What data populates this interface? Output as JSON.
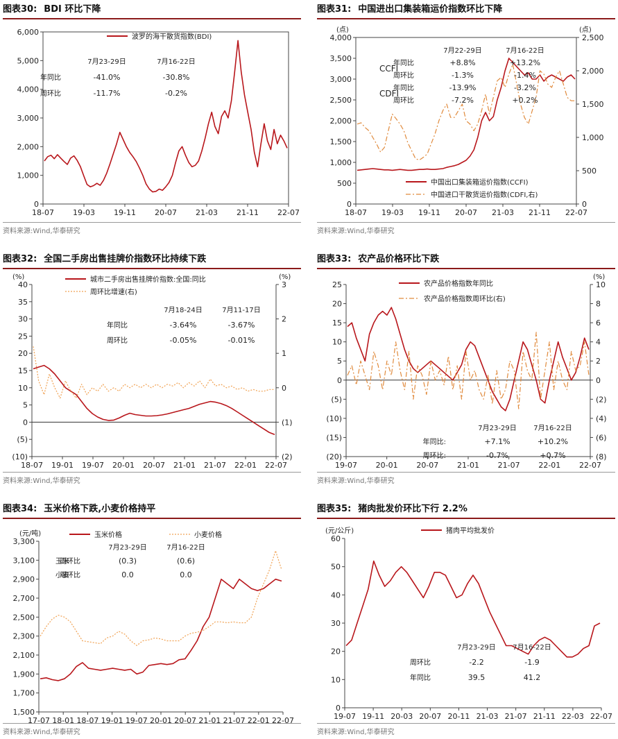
{
  "panels": [
    {
      "id": "p30",
      "num": "图表30:",
      "title": "BDI 环比下降",
      "source": "资料来源:Wind,华泰研究",
      "chart_data": {
        "type": "line",
        "yleft": {
          "min": 0,
          "max": 6000,
          "ticks": [
            "0",
            "1,000",
            "2,000",
            "3,000",
            "4,000",
            "5,000",
            "6,000"
          ],
          "unit": ""
        },
        "xticks": [
          "18-07",
          "19-03",
          "19-11",
          "20-07",
          "21-03",
          "21-11",
          "22-07"
        ],
        "series": [
          {
            "name": "波罗的海干散货指数(BDI)",
            "color": "#b8161b",
            "dash": "",
            "axis": "left",
            "values": [
              1500,
              1650,
              1700,
              1580,
              1720,
              1600,
              1480,
              1380,
              1600,
              1680,
              1520,
              1300,
              980,
              680,
              600,
              640,
              720,
              650,
              820,
              1080,
              1400,
              1750,
              2100,
              2500,
              2250,
              2000,
              1800,
              1650,
              1480,
              1250,
              1000,
              700,
              520,
              420,
              440,
              520,
              480,
              600,
              750,
              1000,
              1450,
              1850,
              2000,
              1700,
              1450,
              1300,
              1350,
              1500,
              1850,
              2300,
              2800,
              3200,
              2700,
              2450,
              3050,
              3250,
              3000,
              3600,
              4600,
              5700,
              4600,
              3800,
              3200,
              2600,
              1800,
              1300,
              2100,
              2800,
              2200,
              1900,
              2600,
              2100,
              2400,
              2200,
              1950
            ]
          }
        ],
        "table": {
          "cols": [
            "7月23-29日",
            "7月16-22日"
          ],
          "rows": [
            {
              "label": "年同比",
              "values": [
                "-41.0%",
                "-30.8%"
              ]
            },
            {
              "label": "周环比",
              "values": [
                "-11.7%",
                "-0.2%"
              ]
            }
          ]
        }
      }
    },
    {
      "id": "p31",
      "num": "图表31:",
      "title": "中国进出口集装箱运价指数环比下降",
      "source": "资料来源:Wind,华泰研究",
      "chart_data": {
        "type": "line",
        "yleft": {
          "min": 0,
          "max": 4000,
          "ticks": [
            "0",
            "500",
            "1,000",
            "1,500",
            "2,000",
            "2,500",
            "3,000",
            "3,500",
            "4,000"
          ],
          "unit": "(点)"
        },
        "yright": {
          "min": 0,
          "max": 2500,
          "ticks": [
            "0",
            "500",
            "1,000",
            "1,500",
            "2,000",
            "2,500"
          ],
          "unit": "(点)"
        },
        "xticks": [
          "18-07",
          "19-03",
          "19-11",
          "20-07",
          "21-03",
          "21-11",
          "22-07"
        ],
        "series": [
          {
            "name": "中国出口集装箱运价指数(CCFI)",
            "color": "#b8161b",
            "dash": "",
            "axis": "left",
            "values": [
              810,
              820,
              830,
              840,
              850,
              840,
              830,
              820,
              820,
              810,
              820,
              830,
              820,
              810,
              810,
              820,
              830,
              830,
              840,
              830,
              830,
              840,
              850,
              880,
              900,
              920,
              950,
              1000,
              1050,
              1150,
              1300,
              1600,
              2000,
              2200,
              2000,
              2100,
              2500,
              2800,
              3200,
              3500,
              3400,
              3300,
              3200,
              3100,
              3150,
              3000,
              3000,
              3100,
              2950,
              3050,
              3100,
              3050,
              3000,
              2950,
              3050,
              3100,
              3000
            ]
          },
          {
            "name": "中国进口干散货运价指数(CDFI,右)",
            "color": "#e08a3c",
            "dash": "7 3 2 3",
            "axis": "right",
            "values": [
              1200,
              1220,
              1150,
              1100,
              1000,
              900,
              780,
              850,
              1100,
              1350,
              1280,
              1200,
              1100,
              920,
              800,
              680,
              660,
              700,
              750,
              900,
              1050,
              1250,
              1400,
              1500,
              1300,
              1300,
              1400,
              1500,
              1250,
              1200,
              1100,
              1200,
              1400,
              1650,
              1350,
              1600,
              1850,
              1900,
              1750,
              1950,
              2100,
              1800,
              1500,
              1300,
              1200,
              1400,
              1600,
              2000,
              1950,
              1800,
              1750,
              1900,
              2000,
              1800,
              1600,
              1550,
              1550
            ]
          }
        ],
        "table": {
          "cols": [
            "7月22-29日",
            "7月16-22日"
          ],
          "rows": [
            {
              "group": "CCFI",
              "label": "年同比",
              "values": [
                "+8.8%",
                "+13.2%"
              ]
            },
            {
              "group": "",
              "label": "周环比",
              "values": [
                "-1.3%",
                "-1.4%"
              ]
            },
            {
              "group": "CDFI",
              "label": "年同比",
              "values": [
                "-13.9%",
                "-3.2%"
              ]
            },
            {
              "group": "",
              "label": "周环比",
              "values": [
                "-7.2%",
                "+0.2%"
              ]
            }
          ]
        }
      }
    },
    {
      "id": "p32",
      "num": "图表32:",
      "title": "全国二手房出售挂牌价指数环比持续下跌",
      "source": "资料来源:Wind,华泰研究",
      "chart_data": {
        "type": "line",
        "yleft": {
          "min": -10,
          "max": 40,
          "ticks": [
            "(10)",
            "(5)",
            "0",
            "5",
            "10",
            "15",
            "20",
            "25",
            "30",
            "35",
            "40"
          ],
          "unit": "(%)"
        },
        "yright": {
          "min": -2,
          "max": 3,
          "ticks": [
            "(2)",
            "(1)",
            "0",
            "1",
            "2",
            "3"
          ],
          "unit": "(%)"
        },
        "xticks": [
          "18-07",
          "19-01",
          "19-07",
          "20-01",
          "20-07",
          "21-01",
          "21-07",
          "22-01",
          "22-07"
        ],
        "series": [
          {
            "name": "城市二手房出售挂牌价指数:全国:同比",
            "color": "#b8161b",
            "dash": "",
            "axis": "left",
            "values": [
              15.5,
              16,
              16.5,
              15.5,
              14,
              12,
              10,
              9,
              8,
              6,
              4,
              2.5,
              1.5,
              0.8,
              0.5,
              0.6,
              1.2,
              2,
              2.6,
              2.2,
              2,
              1.8,
              1.8,
              1.9,
              2.1,
              2.4,
              2.8,
              3.2,
              3.6,
              4,
              4.6,
              5.2,
              5.6,
              6,
              5.8,
              5.4,
              4.8,
              4,
              3,
              2,
              1,
              0,
              -1,
              -2,
              -3,
              -3.6
            ]
          },
          {
            "name": "周环比增速(右)",
            "color": "#f0a050",
            "dash": "2 2",
            "axis": "right",
            "values": [
              1.2,
              0.2,
              -0.2,
              0.4,
              0,
              -0.3,
              0.2,
              -0.1,
              -0.3,
              0.1,
              -0.2,
              0,
              -0.1,
              0.1,
              -0.1,
              0,
              -0.1,
              0.1,
              0,
              0.1,
              0,
              0.1,
              0,
              0.1,
              0,
              0.1,
              0.05,
              0.15,
              0,
              0.15,
              0.05,
              0.2,
              0,
              0.25,
              0.05,
              0.1,
              0,
              0.05,
              -0.05,
              0,
              -0.1,
              -0.05,
              -0.1,
              -0.1,
              -0.05,
              -0.05
            ]
          }
        ],
        "table": {
          "cols": [
            "7月18-24日",
            "7月11-17日"
          ],
          "rows": [
            {
              "label": "年同比",
              "values": [
                "-3.64%",
                "-3.67%"
              ]
            },
            {
              "label": "周环比",
              "values": [
                "-0.05%",
                "-0.01%"
              ]
            }
          ]
        }
      }
    },
    {
      "id": "p33",
      "num": "图表33:",
      "title": "农产品价格环比下跌",
      "source": "资料来源:Wind,华泰研究",
      "chart_data": {
        "type": "line",
        "yleft": {
          "min": -20,
          "max": 25,
          "ticks": [
            "(20)",
            "(15)",
            "(10)",
            "(5)",
            "0",
            "5",
            "10",
            "15",
            "20",
            "25"
          ],
          "unit": ""
        },
        "yright": {
          "min": -8,
          "max": 10,
          "ticks": [
            "(8)",
            "(6)",
            "(4)",
            "(2)",
            "0",
            "2",
            "4",
            "6",
            "8",
            "10"
          ],
          "unit": "(%)"
        },
        "xticks": [
          "19-07",
          "20-01",
          "20-07",
          "21-01",
          "21-07",
          "22-01",
          "22-07"
        ],
        "series": [
          {
            "name": "农产品价格指数年同比",
            "color": "#b8161b",
            "dash": "",
            "axis": "left",
            "values": [
              14,
              15,
              11,
              8,
              5,
              12,
              15,
              17,
              18,
              17,
              19,
              16,
              12,
              8,
              5,
              3,
              2,
              3,
              4,
              5,
              4,
              3,
              2,
              1,
              0,
              2,
              4,
              8,
              10,
              9,
              6,
              3,
              0,
              -3,
              -5,
              -7,
              -8,
              -5,
              0,
              5,
              10,
              8,
              4,
              0,
              -5,
              -6,
              0,
              5,
              10,
              6,
              3,
              0,
              2,
              6,
              11,
              8
            ]
          },
          {
            "name": "农产品价格指数周环比(右)",
            "color": "#e08a3c",
            "dash": "7 3 2 3",
            "axis": "right",
            "values": [
              0.5,
              1.5,
              -0.5,
              2,
              0.5,
              -1,
              3,
              1.5,
              -1,
              2,
              0.5,
              4,
              1,
              -1,
              3,
              -2,
              1.5,
              0.5,
              -1.5,
              2,
              0,
              1,
              -0.5,
              2.5,
              -1,
              1.5,
              -2,
              3,
              0,
              1,
              -1,
              -2,
              0.5,
              -2.5,
              1,
              -2,
              -1,
              2,
              1,
              -3,
              3,
              1,
              0,
              5,
              -2,
              1,
              4,
              -1,
              2,
              0,
              -1,
              3,
              1,
              1.5,
              4,
              0.5
            ]
          }
        ],
        "table": {
          "cols": [
            "7月23-29日",
            "7月16-22日"
          ],
          "rows": [
            {
              "label": "年同比:",
              "values": [
                "+7.1%",
                "+10.2%"
              ]
            },
            {
              "label": "周环比:",
              "values": [
                "-0.7%",
                "+0.7%"
              ]
            }
          ]
        }
      }
    },
    {
      "id": "p34",
      "num": "图表34:",
      "title": "玉米价格下跌,小麦价格持平",
      "source": "资料来源:Wind,华泰研究",
      "chart_data": {
        "type": "line",
        "yleft": {
          "min": 1500,
          "max": 3300,
          "ticks": [
            "1,500",
            "1,700",
            "1,900",
            "2,100",
            "2,300",
            "2,500",
            "2,700",
            "2,900",
            "3,100",
            "3,300"
          ],
          "unit": "(元/吨)"
        },
        "xticks": [
          "17-07",
          "18-01",
          "18-07",
          "19-01",
          "19-07",
          "20-01",
          "20-07",
          "21-01",
          "21-07",
          "22-01",
          "22-07"
        ],
        "series": [
          {
            "name": "玉米价格",
            "color": "#b8161b",
            "dash": "",
            "axis": "left",
            "values": [
              1850,
              1860,
              1840,
              1830,
              1850,
              1900,
              1980,
              2020,
              1960,
              1950,
              1940,
              1950,
              1960,
              1950,
              1940,
              1950,
              1900,
              1920,
              1990,
              2000,
              2010,
              2000,
              2010,
              2050,
              2060,
              2150,
              2250,
              2400,
              2500,
              2700,
              2900,
              2850,
              2800,
              2900,
              2850,
              2800,
              2780,
              2800,
              2850,
              2900,
              2880
            ]
          },
          {
            "name": "小麦价格",
            "color": "#f0a050",
            "dash": "2 2",
            "axis": "left",
            "values": [
              2300,
              2400,
              2480,
              2520,
              2500,
              2450,
              2350,
              2250,
              2240,
              2230,
              2220,
              2280,
              2300,
              2350,
              2320,
              2250,
              2200,
              2250,
              2260,
              2280,
              2270,
              2250,
              2250,
              2250,
              2300,
              2330,
              2340,
              2360,
              2400,
              2450,
              2450,
              2440,
              2450,
              2440,
              2440,
              2500,
              2700,
              2850,
              3000,
              3200,
              3000
            ]
          }
        ],
        "table": {
          "cols": [
            "7月23-29日",
            "7月16-22日"
          ],
          "rows": [
            {
              "group": "玉米",
              "label": "周环比",
              "values": [
                "(0.3)",
                "(0.6)"
              ]
            },
            {
              "group": "小麦",
              "label": "周环比",
              "values": [
                "0.0",
                "0.0"
              ]
            }
          ]
        }
      }
    },
    {
      "id": "p35",
      "num": "图表35:",
      "title": "猪肉批发价环比下行 2.2%",
      "source": "资料来源:Wind,华泰研究",
      "chart_data": {
        "type": "line",
        "yleft": {
          "min": 0,
          "max": 60,
          "ticks": [
            "0",
            "10",
            "20",
            "30",
            "40",
            "50",
            "60"
          ],
          "unit": "(元/公斤)"
        },
        "xticks": [
          "19-07",
          "19-11",
          "20-03",
          "20-07",
          "20-11",
          "21-03",
          "21-07",
          "21-11",
          "22-03",
          "22-07"
        ],
        "series": [
          {
            "name": "猪肉平均批发价",
            "color": "#b8161b",
            "dash": "",
            "axis": "left",
            "values": [
              22,
              24,
              30,
              36,
              42,
              52,
              47,
              43,
              45,
              48,
              50,
              48,
              45,
              42,
              39,
              43,
              48,
              48,
              47,
              43,
              39,
              40,
              44,
              47,
              44,
              39,
              34,
              30,
              26,
              22,
              22,
              21,
              20,
              19,
              22,
              24,
              25,
              24,
              22,
              20,
              18,
              18,
              19,
              21,
              22,
              29,
              30
            ]
          }
        ],
        "table": {
          "cols": [
            "7月23-29日",
            "7月16-22日"
          ],
          "rows": [
            {
              "label": "周环比",
              "values": [
                "-2.2",
                "-1.9"
              ]
            },
            {
              "label": "年同比",
              "values": [
                "39.5",
                "41.2"
              ]
            }
          ]
        }
      }
    }
  ]
}
